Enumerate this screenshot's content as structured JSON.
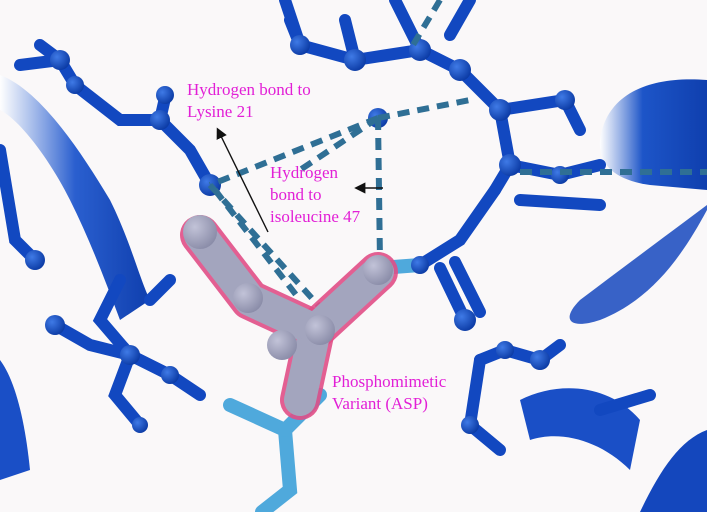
{
  "colors": {
    "background": "#faf8f9",
    "protein": "#1248c0",
    "protein_dark": "#0a2f8c",
    "hbond": "#2f6f95",
    "residue": "#9a9cb8",
    "highlight": "#e04e86",
    "cyan_bond": "#4fa9dc",
    "annotation": "#e21fd6",
    "arrow": "#111111"
  },
  "annotations": {
    "lysine": {
      "line1": "Hydrogen bond to",
      "line2": "Lysine 21"
    },
    "isoleucine": {
      "line1": "Hydrogen",
      "line2": "bond to",
      "line3": "isoleucine 47"
    },
    "variant": {
      "line1": "Phosphomimetic",
      "line2": "Variant (ASP)"
    }
  }
}
